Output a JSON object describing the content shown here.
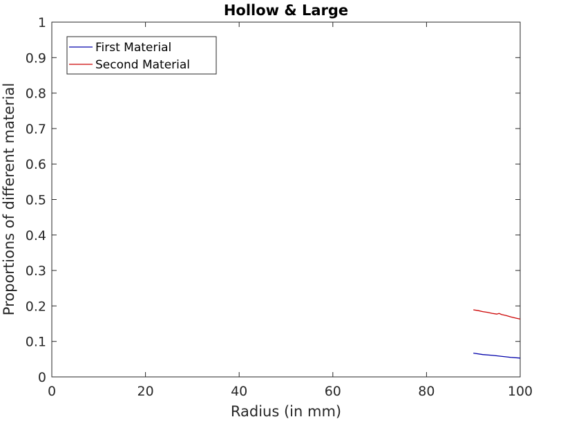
{
  "chart_data": {
    "type": "line",
    "title": "Hollow & Large",
    "xlabel": "Radius (in mm)",
    "ylabel": "Proportions of different material",
    "xlim": [
      0,
      100
    ],
    "ylim": [
      0,
      1
    ],
    "xticks": [
      0,
      20,
      40,
      60,
      80,
      100
    ],
    "yticks": [
      0,
      0.1,
      0.2,
      0.3,
      0.4,
      0.5,
      0.6,
      0.7,
      0.8,
      0.9,
      1
    ],
    "xtick_labels": [
      "0",
      "20",
      "40",
      "60",
      "80",
      "100"
    ],
    "ytick_labels": [
      "0",
      "0.1",
      "0.2",
      "0.3",
      "0.4",
      "0.5",
      "0.6",
      "0.7",
      "0.8",
      "0.9",
      "1"
    ],
    "grid": false,
    "legend_location": "top-left",
    "series": [
      {
        "name": "First Material",
        "color": "#0000aa",
        "x": [
          90,
          92,
          94,
          96,
          98,
          100
        ],
        "y": [
          0.067,
          0.063,
          0.061,
          0.058,
          0.055,
          0.053
        ]
      },
      {
        "name": "Second Material",
        "color": "#cc0000",
        "x": [
          90,
          91,
          92,
          93,
          94,
          95,
          95.5,
          96,
          97,
          98,
          99,
          100
        ],
        "y": [
          0.189,
          0.187,
          0.184,
          0.182,
          0.179,
          0.177,
          0.179,
          0.176,
          0.173,
          0.169,
          0.166,
          0.163
        ]
      }
    ]
  }
}
